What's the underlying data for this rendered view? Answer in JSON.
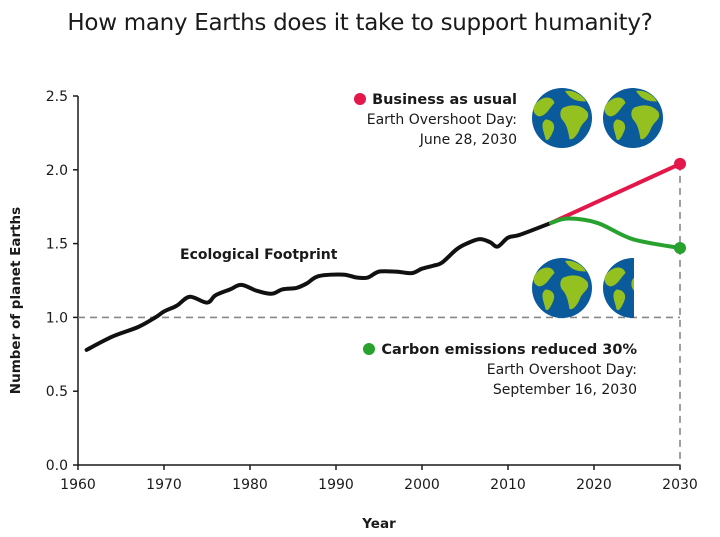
{
  "chart_data": {
    "type": "line",
    "title": "How many Earths does it take to support humanity?",
    "xlabel": "Year",
    "ylabel": "Number of planet Earths",
    "xlim": [
      1960,
      2030
    ],
    "ylim": [
      0,
      2.5
    ],
    "xticks": [
      1960,
      1970,
      1980,
      1990,
      2000,
      2010,
      2020,
      2030
    ],
    "yticks": [
      "0.0",
      "0.5",
      "1.0",
      "1.5",
      "2.0",
      "2.5"
    ],
    "grid": false,
    "reference_line": {
      "y": 1.0,
      "style": "dashed"
    },
    "series": [
      {
        "name": "Ecological Footprint",
        "color": "#111111",
        "x": [
          1961,
          1964,
          1967,
          1969,
          1970,
          1971.5,
          1973,
          1975,
          1976,
          1977.7,
          1979,
          1980.8,
          1982.5,
          1983.8,
          1985.4,
          1986.6,
          1988,
          1990.8,
          1992.4,
          1993.7,
          1995,
          1997,
          1998.8,
          2000,
          2001.3,
          2002.3,
          2004,
          2005.2,
          2006.7,
          2007.9,
          2008.8,
          2010,
          2011.4,
          2015
        ],
        "y": [
          0.78,
          0.87,
          0.935,
          1.0,
          1.04,
          1.08,
          1.14,
          1.1,
          1.15,
          1.19,
          1.22,
          1.18,
          1.16,
          1.19,
          1.2,
          1.23,
          1.28,
          1.29,
          1.27,
          1.27,
          1.31,
          1.31,
          1.3,
          1.33,
          1.35,
          1.37,
          1.46,
          1.5,
          1.53,
          1.51,
          1.48,
          1.54,
          1.56,
          1.64
        ]
      },
      {
        "name": "Business as usual",
        "color": "#e4174b",
        "x": [
          2015,
          2030
        ],
        "y": [
          1.64,
          2.04
        ]
      },
      {
        "name": "Carbon emissions reduced 30%",
        "color": "#27a22f",
        "x": [
          2015,
          2017,
          2020.4,
          2024.5,
          2030
        ],
        "y": [
          1.64,
          1.67,
          1.64,
          1.53,
          1.47
        ]
      }
    ],
    "annotations": {
      "footprint_label": "Ecological Footprint",
      "bau": {
        "title": "Business as usual",
        "line1": "Earth Overshoot Day:",
        "line2": "June 28, 2030",
        "earths": 2
      },
      "carbon": {
        "title": "Carbon emissions reduced 30%",
        "line1": "Earth Overshoot Day:",
        "line2": "September 16, 2030",
        "earths": 1.5
      }
    }
  },
  "colors": {
    "ocean": "#0b5a9c",
    "land": "#94c11f"
  }
}
